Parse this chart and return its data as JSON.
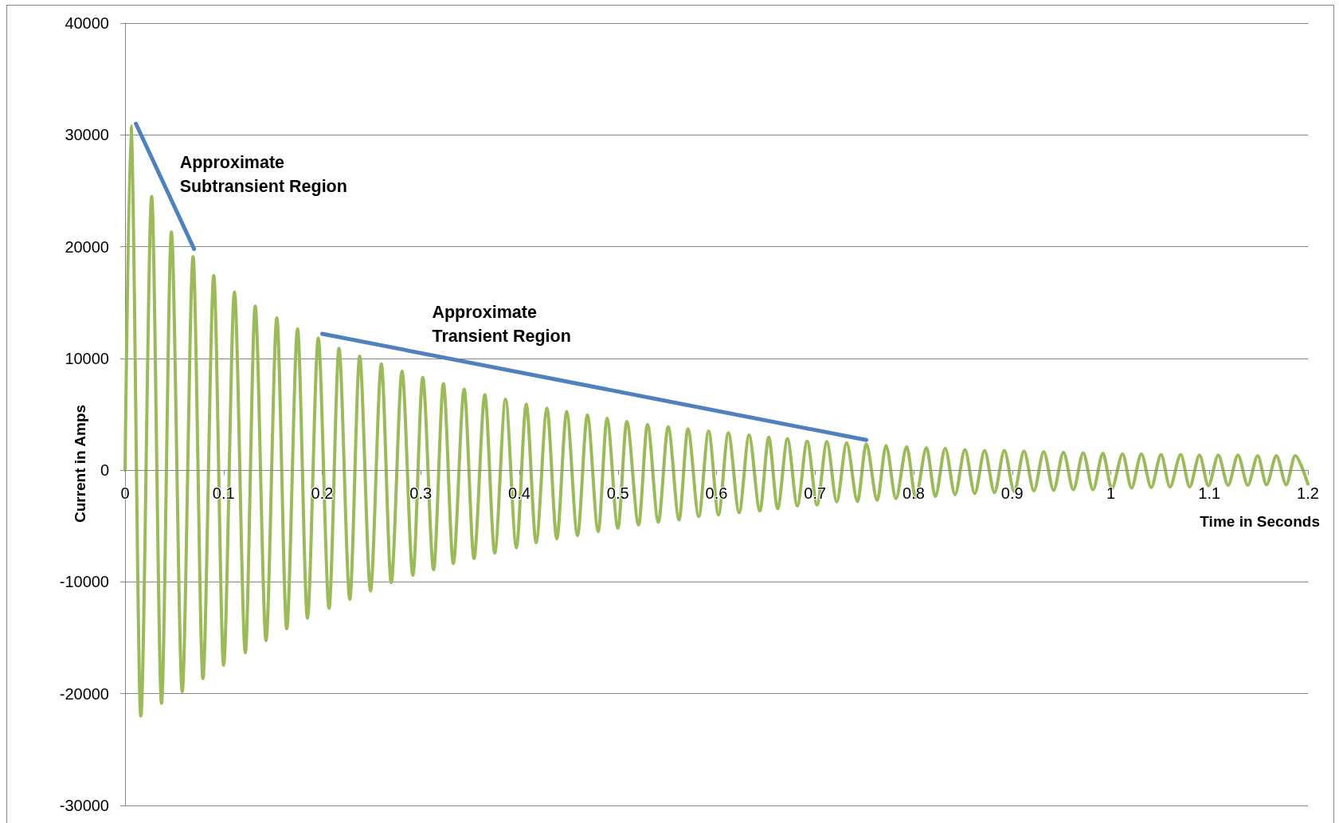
{
  "chart_data": {
    "type": "line",
    "xlabel": "Time in Seconds",
    "ylabel": "Current in Amps",
    "annotations": [
      {
        "text": "Approximate\nSubtransient Region",
        "x": 0.049,
        "y": 23800
      },
      {
        "text": "Approximate\nTransient Region",
        "x": 0.305,
        "y": 10400
      }
    ],
    "series": [
      {
        "color": "#9bbb59",
        "x": [
          0,
          0.006,
          0.016,
          0.027,
          0.037,
          0.047,
          0.058,
          0.069,
          0.079,
          0.09,
          0.1,
          0.111,
          0.122,
          0.132,
          0.143,
          0.154,
          0.164,
          0.175,
          0.185,
          0.196,
          0.207,
          0.217,
          0.228,
          0.238,
          0.249,
          0.26,
          0.27,
          0.281,
          0.292,
          0.302,
          0.313,
          0.323,
          0.333,
          0.344,
          0.354,
          0.365,
          0.375,
          0.386,
          0.397,
          0.407,
          0.417,
          0.428,
          0.438,
          0.448,
          0.459,
          0.469,
          0.48,
          0.489,
          0.5,
          0.509,
          0.521,
          0.53,
          0.541,
          0.551,
          0.562,
          0.571,
          0.582,
          0.592,
          0.602,
          0.612,
          0.623,
          0.633,
          0.644,
          0.653,
          0.662,
          0.672,
          0.682,
          0.692,
          0.702,
          0.712,
          0.722,
          0.732,
          0.743,
          0.752,
          0.763,
          0.772,
          0.782,
          0.793,
          0.802,
          0.813,
          0.822,
          0.832,
          0.842,
          0.852,
          0.862,
          0.872,
          0.882,
          0.892,
          0.902,
          0.912,
          0.922,
          0.932,
          0.942,
          0.952,
          0.962,
          0.972,
          0.982,
          0.992,
          1.001,
          1.012,
          1.021,
          1.031,
          1.041,
          1.051,
          1.06,
          1.071,
          1.08,
          1.09,
          1.099,
          1.109,
          1.119,
          1.129,
          1.139,
          1.149,
          1.158,
          1.168,
          1.178,
          1.187,
          1.2
        ],
        "values": [
          0,
          30800,
          -22000,
          24500,
          -20850,
          21300,
          -19800,
          19100,
          -18650,
          17400,
          -17450,
          15950,
          -16350,
          14700,
          -15250,
          13650,
          -14200,
          12650,
          -13250,
          11800,
          -12350,
          10900,
          -11550,
          10200,
          -10800,
          9500,
          -10050,
          8850,
          -9400,
          8300,
          -8900,
          7750,
          -8350,
          7250,
          -7900,
          6750,
          -7400,
          6350,
          -6950,
          5900,
          -6500,
          5550,
          -6150,
          5250,
          -5850,
          4950,
          -5500,
          4650,
          -5200,
          4350,
          -4900,
          4100,
          -4650,
          3900,
          -4450,
          3700,
          -4150,
          3500,
          -4000,
          3350,
          -3800,
          3150,
          -3650,
          2950,
          -3450,
          2800,
          -3200,
          2600,
          -3100,
          2550,
          -2850,
          2450,
          -2800,
          2350,
          -2700,
          2200,
          -2550,
          2100,
          -2450,
          2000,
          -2350,
          1950,
          -2200,
          1850,
          -2100,
          1750,
          -2000,
          1750,
          -1900,
          1700,
          -1850,
          1650,
          -1800,
          1600,
          -1750,
          1550,
          -1750,
          1500,
          -1650,
          1450,
          -1600,
          1450,
          -1550,
          1400,
          -1500,
          1400,
          -1500,
          1350,
          -1400,
          1350,
          -1350,
          1350,
          -1350,
          1300,
          -1300,
          1300,
          -1300,
          1300,
          -1250
        ]
      },
      {
        "color": "#4f81bd",
        "x": [
          0.011,
          0.07
        ],
        "values": [
          31000,
          19800
        ]
      },
      {
        "color": "#4f81bd",
        "x": [
          0.2,
          0.752
        ],
        "values": [
          12200,
          2700
        ]
      }
    ],
    "xlim": [
      0,
      1.2
    ],
    "xticks": [
      0,
      0.1,
      0.2,
      0.3,
      0.4,
      0.5,
      0.6,
      0.7,
      0.8,
      0.9,
      1,
      1.1,
      1.2
    ],
    "ylim": [
      -30000,
      40000
    ],
    "yticks": [
      -30000,
      -20000,
      -10000,
      0,
      10000,
      20000,
      30000,
      40000
    ],
    "grid": "y",
    "line_style": "solid"
  }
}
